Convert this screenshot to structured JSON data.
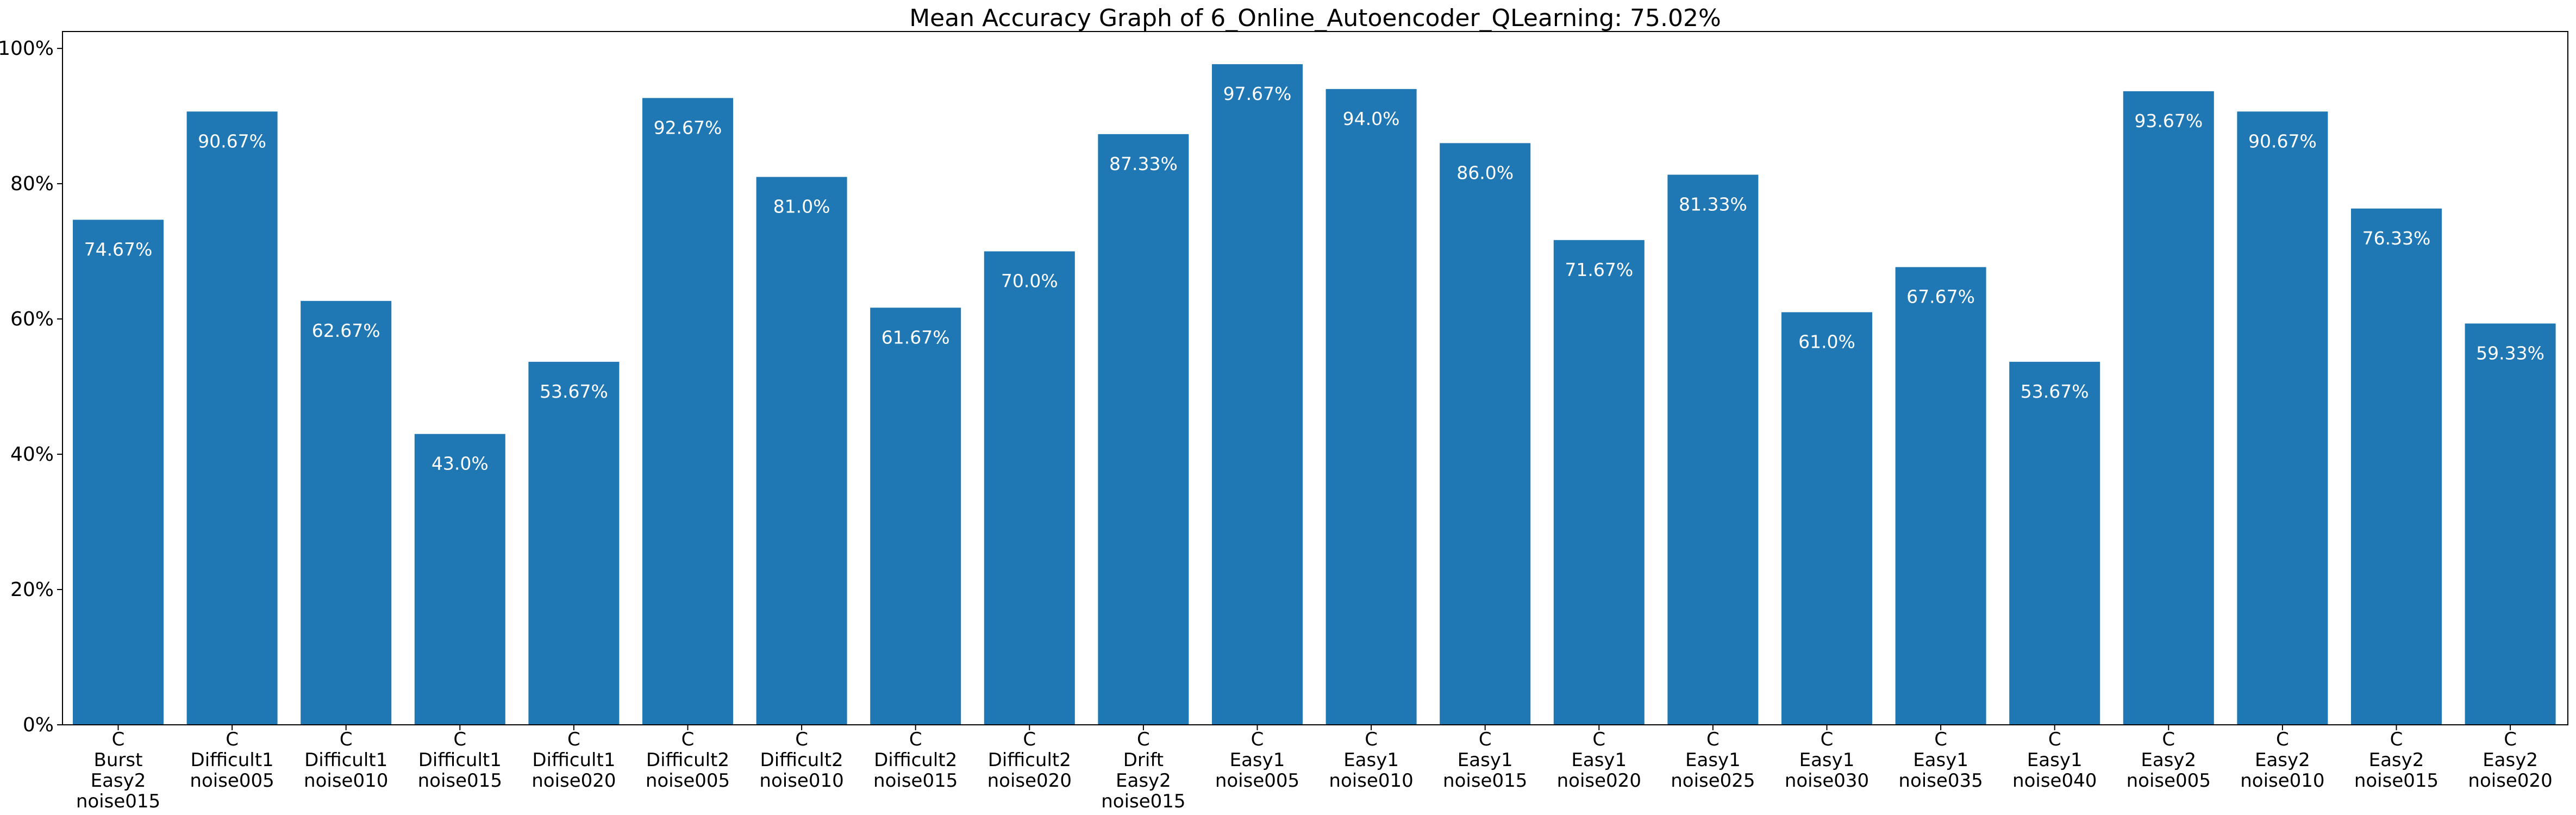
{
  "chart_data": {
    "type": "bar",
    "title": "Mean Accuracy Graph of 6_Online_Autoencoder_QLearning: 75.02%",
    "xlabel": "",
    "ylabel": "",
    "ylim": [
      0,
      102.5
    ],
    "y_ticks": [
      "0%",
      "20%",
      "40%",
      "60%",
      "80%",
      "100%"
    ],
    "y_tick_values": [
      0,
      20,
      40,
      60,
      80,
      100
    ],
    "grid": false,
    "legend": "none",
    "bar_color": "#1f77b4",
    "label_color": "#ffffff",
    "categories": [
      [
        "C",
        "Burst",
        "Easy2",
        "noise015"
      ],
      [
        "C",
        "Difficult1",
        "noise005"
      ],
      [
        "C",
        "Difficult1",
        "noise010"
      ],
      [
        "C",
        "Difficult1",
        "noise015"
      ],
      [
        "C",
        "Difficult1",
        "noise020"
      ],
      [
        "C",
        "Difficult2",
        "noise005"
      ],
      [
        "C",
        "Difficult2",
        "noise010"
      ],
      [
        "C",
        "Difficult2",
        "noise015"
      ],
      [
        "C",
        "Difficult2",
        "noise020"
      ],
      [
        "C",
        "Drift",
        "Easy2",
        "noise015"
      ],
      [
        "C",
        "Easy1",
        "noise005"
      ],
      [
        "C",
        "Easy1",
        "noise010"
      ],
      [
        "C",
        "Easy1",
        "noise015"
      ],
      [
        "C",
        "Easy1",
        "noise020"
      ],
      [
        "C",
        "Easy1",
        "noise025"
      ],
      [
        "C",
        "Easy1",
        "noise030"
      ],
      [
        "C",
        "Easy1",
        "noise035"
      ],
      [
        "C",
        "Easy1",
        "noise040"
      ],
      [
        "C",
        "Easy2",
        "noise005"
      ],
      [
        "C",
        "Easy2",
        "noise010"
      ],
      [
        "C",
        "Easy2",
        "noise015"
      ],
      [
        "C",
        "Easy2",
        "noise020"
      ]
    ],
    "values": [
      74.67,
      90.67,
      62.67,
      43.0,
      53.67,
      92.67,
      81.0,
      61.67,
      70.0,
      87.33,
      97.67,
      94.0,
      86.0,
      71.67,
      81.33,
      61.0,
      67.67,
      53.67,
      93.67,
      90.67,
      76.33,
      59.33
    ],
    "value_labels": [
      "74.67%",
      "90.67%",
      "62.67%",
      "43.0%",
      "53.67%",
      "92.67%",
      "81.0%",
      "61.67%",
      "70.0%",
      "87.33%",
      "97.67%",
      "94.0%",
      "86.0%",
      "71.67%",
      "81.33%",
      "61.0%",
      "67.67%",
      "53.67%",
      "93.67%",
      "90.67%",
      "76.33%",
      "59.33%"
    ]
  }
}
